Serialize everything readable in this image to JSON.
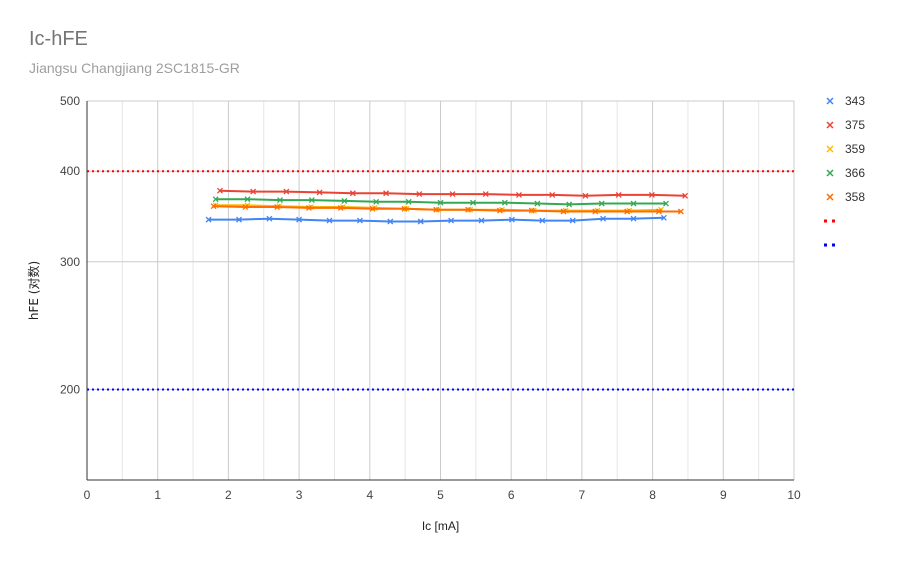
{
  "chart_data": {
    "type": "line",
    "title": "Ic-hFE",
    "subtitle": "Jiangsu Changjiang 2SC1815-GR",
    "xlabel": "Ic [mA]",
    "ylabel": "hFE (对数)",
    "xlim": [
      0,
      10
    ],
    "ylim": [
      150,
      500
    ],
    "yscale": "log",
    "x_ticks": [
      0,
      1,
      2,
      3,
      4,
      5,
      6,
      7,
      8,
      9,
      10
    ],
    "y_ticks": [
      200,
      300,
      400,
      500
    ],
    "grid": true,
    "legend_position": "right",
    "series": [
      {
        "name": "343",
        "color": "#4285f4",
        "marker": "x",
        "x": [
          1.72,
          2.15,
          2.58,
          3.0,
          3.43,
          3.86,
          4.29,
          4.72,
          5.15,
          5.58,
          6.01,
          6.44,
          6.87,
          7.3,
          7.73,
          8.16
        ],
        "y": [
          343,
          343,
          344,
          343,
          342,
          342,
          341,
          341,
          342,
          342,
          343,
          342,
          342,
          344,
          344,
          345
        ]
      },
      {
        "name": "375",
        "color": "#ea4335",
        "marker": "x",
        "x": [
          1.88,
          2.35,
          2.82,
          3.29,
          3.76,
          4.23,
          4.7,
          5.17,
          5.64,
          6.11,
          6.58,
          7.05,
          7.52,
          7.99,
          8.46
        ],
        "y": [
          376,
          375,
          375,
          374,
          373,
          373,
          372,
          372,
          372,
          371,
          371,
          370,
          371,
          371,
          370
        ]
      },
      {
        "name": "359",
        "color": "#fbbc04",
        "marker": "x",
        "x": [
          1.82,
          2.27,
          2.72,
          3.17,
          3.62,
          4.07,
          4.52,
          4.97,
          5.42,
          5.87,
          6.32,
          6.77,
          7.22,
          7.67,
          8.12
        ],
        "y": [
          359,
          359,
          358,
          357,
          357,
          356,
          355,
          354,
          354,
          354,
          353,
          353,
          353,
          353,
          354
        ]
      },
      {
        "name": "366",
        "color": "#34a853",
        "marker": "x",
        "x": [
          1.82,
          2.27,
          2.73,
          3.18,
          3.64,
          4.09,
          4.55,
          5.0,
          5.46,
          5.91,
          6.37,
          6.82,
          7.28,
          7.73,
          8.19
        ],
        "y": [
          366,
          366,
          365,
          365,
          364,
          363,
          363,
          362,
          362,
          362,
          361,
          360,
          361,
          361,
          361
        ]
      },
      {
        "name": "358",
        "color": "#ff6d01",
        "marker": "x",
        "x": [
          1.79,
          2.24,
          2.69,
          3.14,
          3.59,
          4.04,
          4.49,
          4.94,
          5.39,
          5.84,
          6.29,
          6.74,
          7.19,
          7.64,
          8.09,
          8.4
        ],
        "y": [
          358,
          357,
          357,
          356,
          356,
          355,
          355,
          354,
          354,
          353,
          353,
          352,
          352,
          352,
          352,
          352
        ]
      }
    ],
    "reference_lines": [
      {
        "y": 400,
        "color": "#ff0000",
        "style": "dotted",
        "legend_label": ""
      },
      {
        "y": 200,
        "color": "#0000ff",
        "style": "dotted",
        "legend_label": ""
      }
    ]
  }
}
